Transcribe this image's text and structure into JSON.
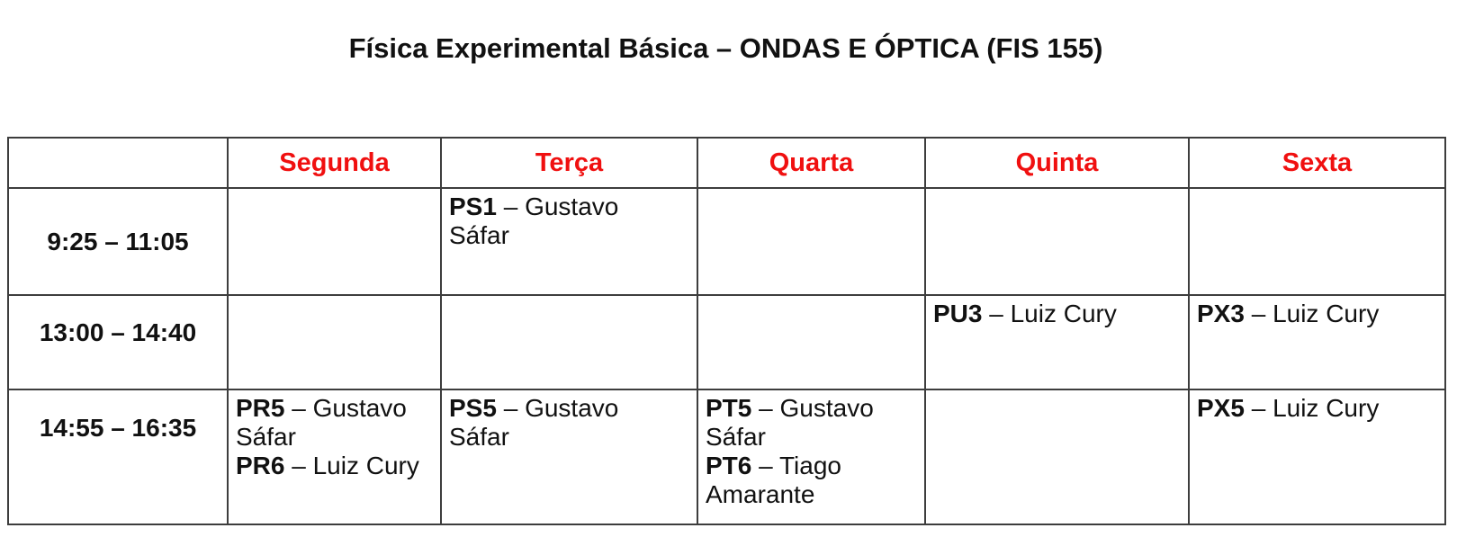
{
  "title": "Física Experimental Básica – ONDAS E ÓPTICA (FIS 155)",
  "colors": {
    "day_header_red": "#f01010",
    "grid_border": "#3d3d3d",
    "text_black": "#111111"
  },
  "table": {
    "separator": "–",
    "corner_label": "",
    "days": [
      "Segunda",
      "Terça",
      "Quarta",
      "Quinta",
      "Sexta"
    ],
    "rows": [
      {
        "time": "9:25 – 11:05",
        "cells": [
          [],
          [
            {
              "code": "PS1",
              "teacher": "Gustavo Sáfar"
            }
          ],
          [],
          [],
          []
        ]
      },
      {
        "time": "13:00 – 14:40",
        "cells": [
          [],
          [],
          [],
          [
            {
              "code": "PU3",
              "teacher": "Luiz Cury"
            }
          ],
          [
            {
              "code": "PX3",
              "teacher": "Luiz Cury"
            }
          ]
        ]
      },
      {
        "time": "14:55 – 16:35",
        "cells": [
          [
            {
              "code": "PR5",
              "teacher": "Gustavo Sáfar"
            },
            {
              "code": "PR6",
              "teacher": "Luiz Cury"
            }
          ],
          [
            {
              "code": "PS5",
              "teacher": "Gustavo Sáfar"
            }
          ],
          [
            {
              "code": "PT5",
              "teacher": "Gustavo Sáfar"
            },
            {
              "code": "PT6",
              "teacher": "Tiago Amarante"
            }
          ],
          [],
          [
            {
              "code": "PX5",
              "teacher": "Luiz Cury"
            }
          ]
        ]
      }
    ]
  }
}
